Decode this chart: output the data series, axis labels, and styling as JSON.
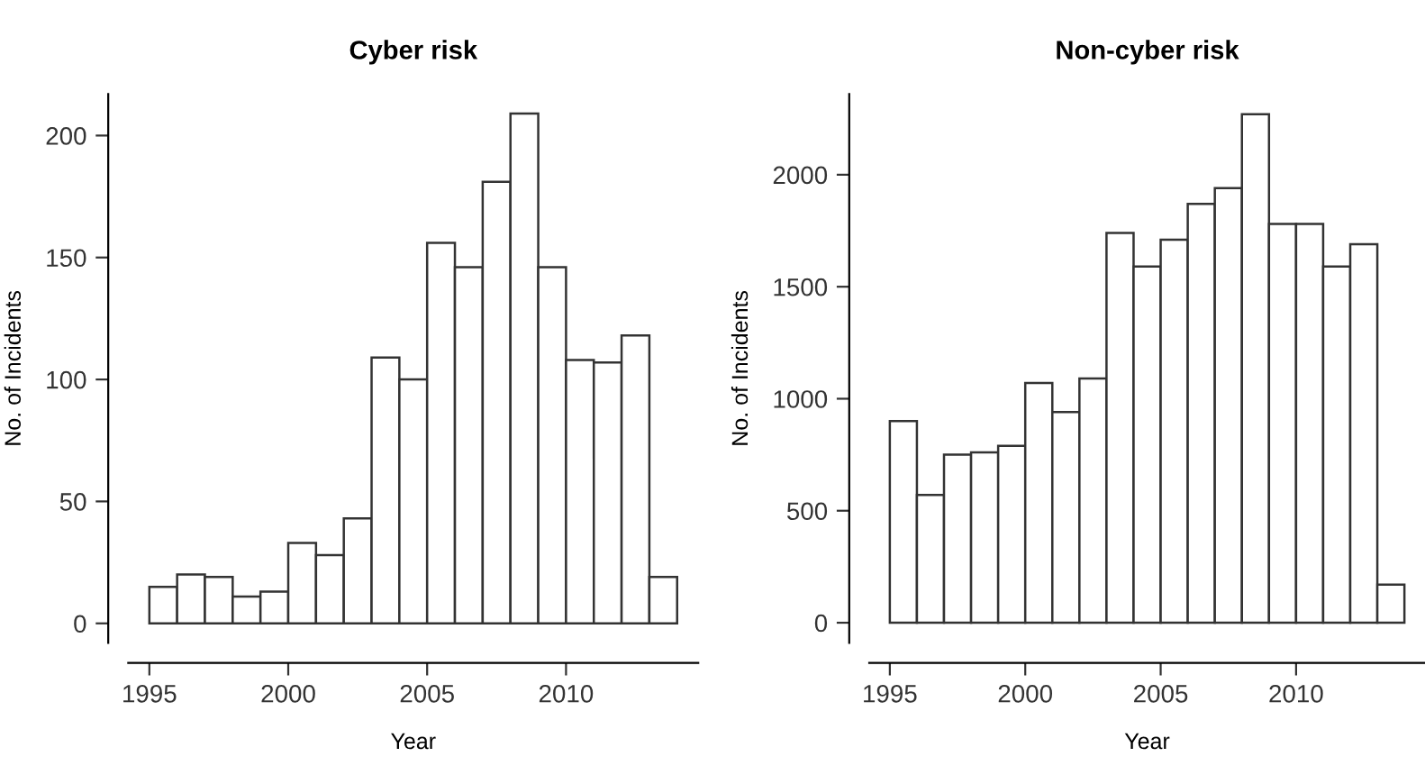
{
  "chart_data": [
    {
      "type": "histogram",
      "title": "Cyber risk",
      "xlabel": "Year",
      "ylabel": "No. of Incidents",
      "bins": [
        1995,
        1996,
        1997,
        1998,
        1999,
        2000,
        2001,
        2002,
        2003,
        2004,
        2005,
        2006,
        2007,
        2008,
        2009,
        2010,
        2011,
        2012,
        2013,
        2014
      ],
      "values": [
        15,
        20,
        19,
        11,
        13,
        33,
        28,
        43,
        109,
        100,
        156,
        146,
        181,
        209,
        146,
        108,
        107,
        118,
        19
      ],
      "color": "#ffffff",
      "xlim": [
        1994.24,
        2014.76
      ],
      "ylim": [
        -8,
        217
      ],
      "xticks": [
        1995,
        2000,
        2005,
        2010
      ],
      "yticks": [
        0,
        50,
        100,
        150,
        200
      ],
      "grid": false
    },
    {
      "type": "histogram",
      "title": "Non-cyber risk",
      "xlabel": "Year",
      "ylabel": "No. of Incidents",
      "bins": [
        1995,
        1996,
        1997,
        1998,
        1999,
        2000,
        2001,
        2002,
        2003,
        2004,
        2005,
        2006,
        2007,
        2008,
        2009,
        2010,
        2011,
        2012,
        2013,
        2014
      ],
      "values": [
        900,
        570,
        750,
        760,
        790,
        1070,
        940,
        1090,
        1740,
        1590,
        1710,
        1870,
        1940,
        2270,
        1780,
        1780,
        1590,
        1690,
        170
      ],
      "color": "#ffffff",
      "xlim": [
        1994.24,
        2014.76
      ],
      "ylim": [
        -90,
        2360
      ],
      "xticks": [
        1995,
        2000,
        2005,
        2010
      ],
      "yticks": [
        0,
        500,
        1000,
        1500,
        2000
      ],
      "grid": false
    }
  ]
}
